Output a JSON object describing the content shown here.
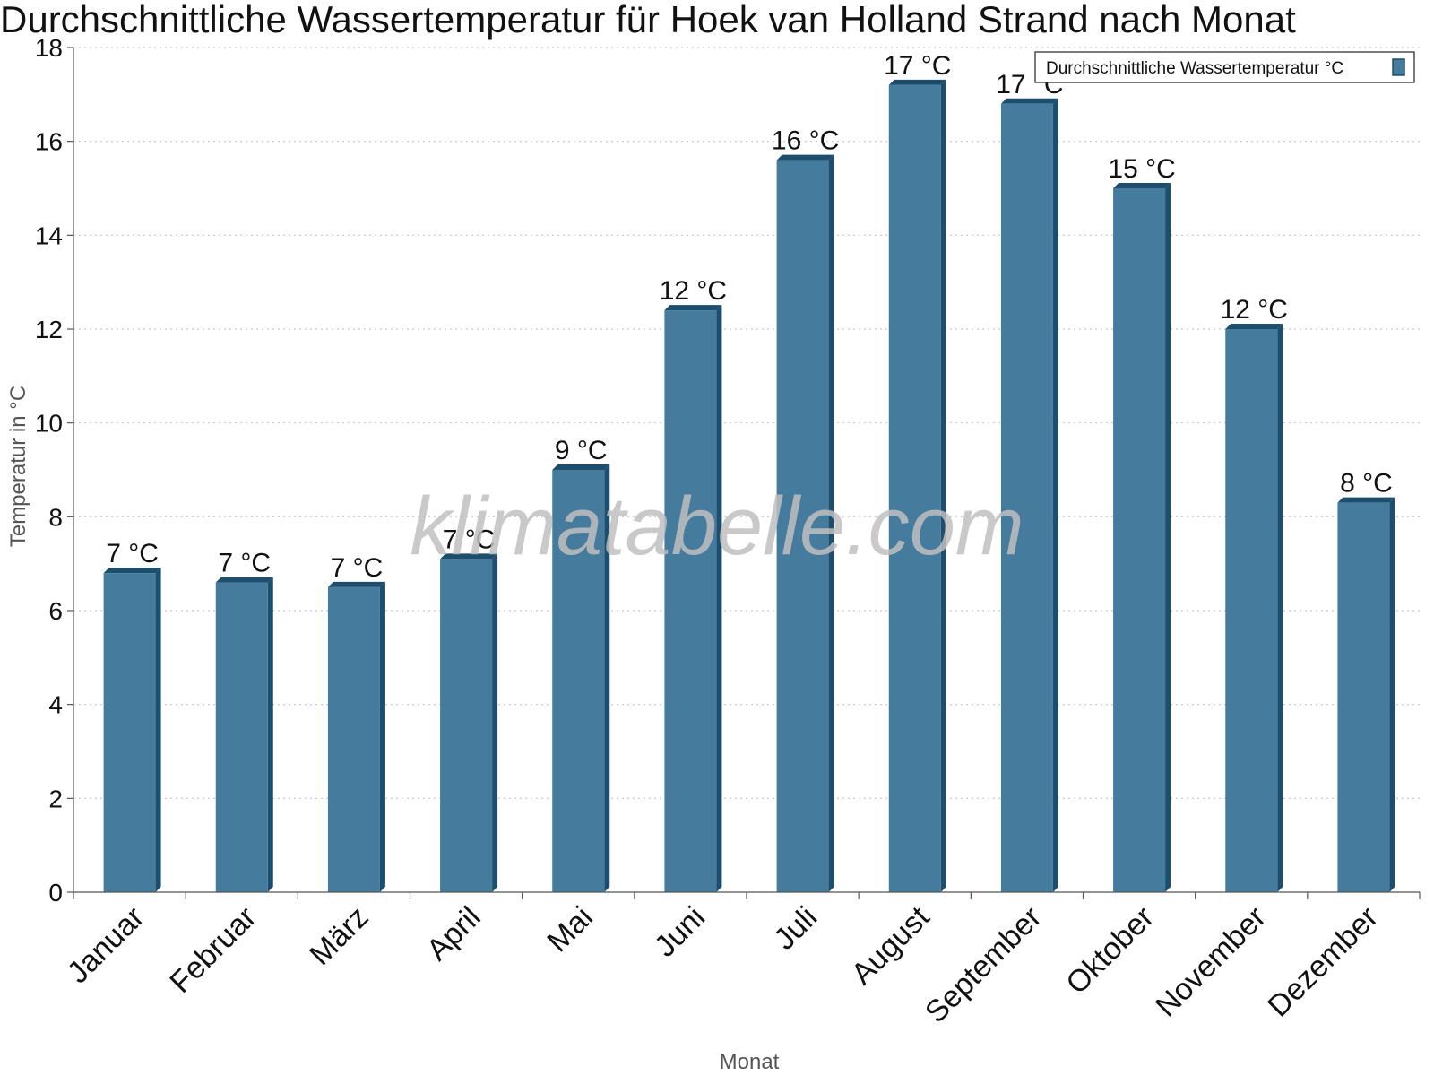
{
  "watermark": "klimatabelle.com",
  "colors": {
    "bar_front": "#457b9d",
    "bar_side": "#1d4e6e",
    "bar_top": "#1d4e6e",
    "grid": "#c8c8c8",
    "axis": "#555555"
  },
  "chart_data": {
    "type": "bar",
    "title": "Durchschnittliche Wassertemperatur für Hoek van Holland Strand nach Monat",
    "xlabel": "Monat",
    "ylabel": "Temperatur in °C",
    "ylim": [
      0,
      18
    ],
    "yticks": [
      0,
      2,
      4,
      6,
      8,
      10,
      12,
      14,
      16,
      18
    ],
    "grid": "horizontal-dotted",
    "legend_position": "top-right",
    "categories": [
      "Januar",
      "Februar",
      "März",
      "April",
      "Mai",
      "Juni",
      "Juli",
      "August",
      "September",
      "Oktober",
      "November",
      "Dezember"
    ],
    "series": [
      {
        "name": "Durchschnittliche Wassertemperatur °C",
        "values": [
          6.8,
          6.6,
          6.5,
          7.1,
          9.0,
          12.4,
          15.6,
          17.2,
          16.8,
          15.0,
          12.0,
          8.3
        ],
        "labels": [
          "7 °C",
          "7 °C",
          "7 °C",
          "7 °C",
          "9 °C",
          "12 °C",
          "16 °C",
          "17 °C",
          "17 °C",
          "15 °C",
          "12 °C",
          "8 °C"
        ]
      }
    ]
  }
}
